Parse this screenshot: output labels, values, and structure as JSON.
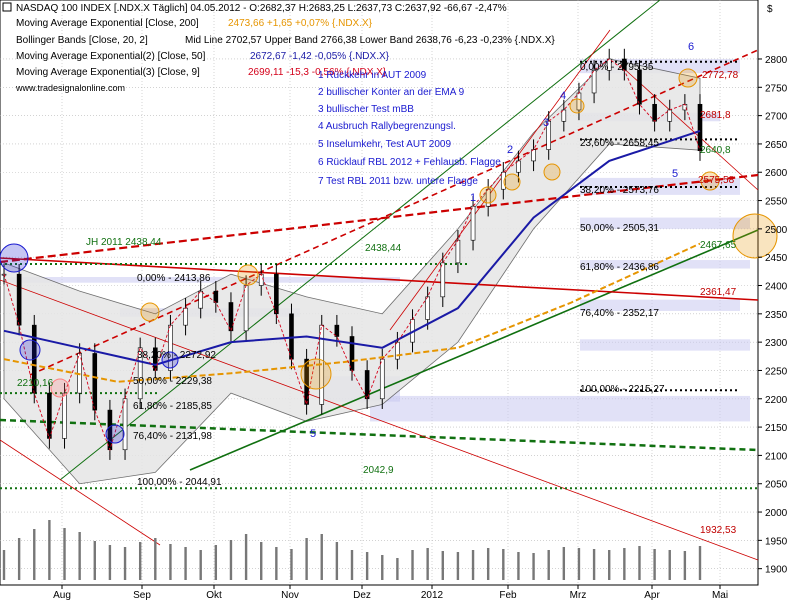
{
  "header": {
    "title_line": "NASDAQ 100 INDEX [.NDX.X  Täglich] 04.05.2012 - O:2682,37 H:2683,25 L:2637,73 C:2637,92 -66,67 -2,47%",
    "indicators": [
      {
        "text": "Moving Average Exponential [Close, 200]",
        "value": "2473,66 +1,65 +0,07% {.NDX.X}",
        "color": "#e69500"
      },
      {
        "text": "Bollinger Bands [Close, 20, 2]",
        "value": "Mid Line 2702,57 Upper Band 2766,38 Lower Band 2638,76 -6,23 -0,23% {.NDX.X}",
        "color": "#c00000"
      },
      {
        "text": "Moving Average Exponential(2) [Close, 50]",
        "value": "2672,67 -1,42 -0,05% {.NDX.X}",
        "color": "#1a1aa6"
      },
      {
        "text": "Moving Average Exponential(3) [Close, 9]",
        "value": "2699,11 -15,3 -0,56% {.NDX.X}",
        "color": "#d4001a"
      }
    ],
    "source": "www.tradesignalonline.com"
  },
  "legend_notes": [
    "1 Rückkehr in AUT 2009",
    "2 bullischer Konter an der EMA 9",
    "3 bullischer Test mBB",
    "4 Ausbruch Rallybegrenzungsl.",
    "5 Inselumkehr, Test AUT 2009",
    "6 Rücklauf RBL 2012 + Fehlausb. Flagge",
    "7 Test RBL 2011 bzw. untere Flagge"
  ],
  "annotations": {
    "jh2011": "JH 2011 2438,44",
    "fib_left": [
      "0,00% - 2413,86",
      "38,20% - 2272,92",
      "50,00% - 2229,38",
      "61,80% - 2185,85",
      "76,40% - 2131,98",
      "100,00% - 2044,91"
    ],
    "fib_right": [
      "0,00% - 2795,35",
      "23,60% - 2658,45",
      "38,20% - 2573,76",
      "50,00% - 2505,31",
      "61,80% - 2436,86",
      "76,40% - 2352,17",
      "100,00% - 2215,27"
    ],
    "level_2042": "2042,9",
    "level_2210": "2210,16",
    "level_2438_mid": "2438,44",
    "price_tags": [
      "2772,78",
      "2681,8",
      "2640,8",
      "2575,58",
      "2467,65",
      "2361,47",
      "1932,53"
    ],
    "wave_marks": [
      "1",
      "2",
      "3",
      "4",
      "5",
      "6",
      "5"
    ]
  },
  "chart_data": {
    "type": "line",
    "title": "NASDAQ 100 INDEX [.NDX.X Täglich]",
    "xlabel": "",
    "ylabel": "$",
    "x_ticks": [
      "Aug",
      "Sep",
      "Okt",
      "Nov",
      "Dez",
      "2012",
      "Feb",
      "Mrz",
      "Apr",
      "Mai"
    ],
    "y_ticks": [
      1900,
      1950,
      2000,
      2050,
      2100,
      2150,
      2200,
      2250,
      2300,
      2350,
      2400,
      2450,
      2500,
      2550,
      2600,
      2650,
      2700,
      2750,
      2800
    ],
    "ylim": [
      1880,
      2860
    ],
    "series": [
      {
        "name": "NASDAQ 100 INDEX",
        "x": [
          0,
          4,
          8,
          12,
          16,
          20,
          24,
          28,
          32,
          36,
          40,
          44,
          48,
          52,
          56,
          60,
          64,
          68,
          72,
          76,
          80,
          84,
          88,
          92,
          96,
          100,
          104,
          108,
          112,
          116,
          120,
          124,
          128,
          132,
          136,
          140,
          144,
          148,
          152,
          156,
          160,
          164,
          168,
          172,
          176,
          180,
          184
        ],
        "values": [
          2420,
          2330,
          2210,
          2130,
          2210,
          2280,
          2180,
          2110,
          2200,
          2290,
          2250,
          2330,
          2360,
          2390,
          2370,
          2320,
          2400,
          2420,
          2350,
          2270,
          2190,
          2330,
          2310,
          2250,
          2200,
          2270,
          2300,
          2340,
          2380,
          2440,
          2480,
          2540,
          2570,
          2600,
          2620,
          2640,
          2690,
          2710,
          2740,
          2780,
          2800,
          2780,
          2720,
          2690,
          2710,
          2720,
          2638
        ]
      },
      {
        "name": "Moving Average Exponential [Close, 200]",
        "x": [
          0,
          30,
          60,
          90,
          120,
          150,
          184
        ],
        "values": [
          2270,
          2230,
          2245,
          2265,
          2290,
          2370,
          2474
        ]
      },
      {
        "name": "Moving Average Exponential(2) [Close, 50]",
        "x": [
          0,
          20,
          40,
          60,
          80,
          100,
          120,
          140,
          160,
          184
        ],
        "values": [
          2320,
          2290,
          2260,
          2300,
          2310,
          2290,
          2360,
          2520,
          2620,
          2673
        ]
      },
      {
        "name": "Bollinger Upper Band",
        "x": [
          0,
          20,
          40,
          60,
          80,
          100,
          120,
          140,
          160,
          184
        ],
        "values": [
          2440,
          2390,
          2350,
          2420,
          2380,
          2350,
          2500,
          2670,
          2800,
          2766
        ]
      },
      {
        "name": "Bollinger Lower Band",
        "x": [
          0,
          20,
          40,
          60,
          80,
          100,
          120,
          140,
          160,
          184
        ],
        "values": [
          2200,
          2050,
          2070,
          2210,
          2160,
          2190,
          2300,
          2500,
          2650,
          2639
        ]
      }
    ],
    "volume": [
      300,
      420,
      510,
      600,
      520,
      480,
      390,
      350,
      330,
      380,
      420,
      360,
      330,
      300,
      350,
      400,
      460,
      380,
      330,
      310,
      420,
      460,
      380,
      300,
      280,
      250,
      220,
      300,
      320,
      290,
      280,
      300,
      320,
      310,
      280,
      270,
      300,
      330,
      320,
      310,
      300,
      320,
      340,
      310,
      300,
      290,
      340
    ],
    "grid": true,
    "legend": "top-left"
  },
  "colors": {
    "candle": "#000000",
    "grid": "#b8b8b8",
    "ema200": "#e69500",
    "ema50": "#1a1aa6",
    "ema9": "#d4001a",
    "boll": "#555555",
    "boll_fill": "#e6e6e6",
    "trend_green": "#107010",
    "trend_red": "#cc0000",
    "zones": "#c8c8f0",
    "fib_label": "#000000"
  }
}
